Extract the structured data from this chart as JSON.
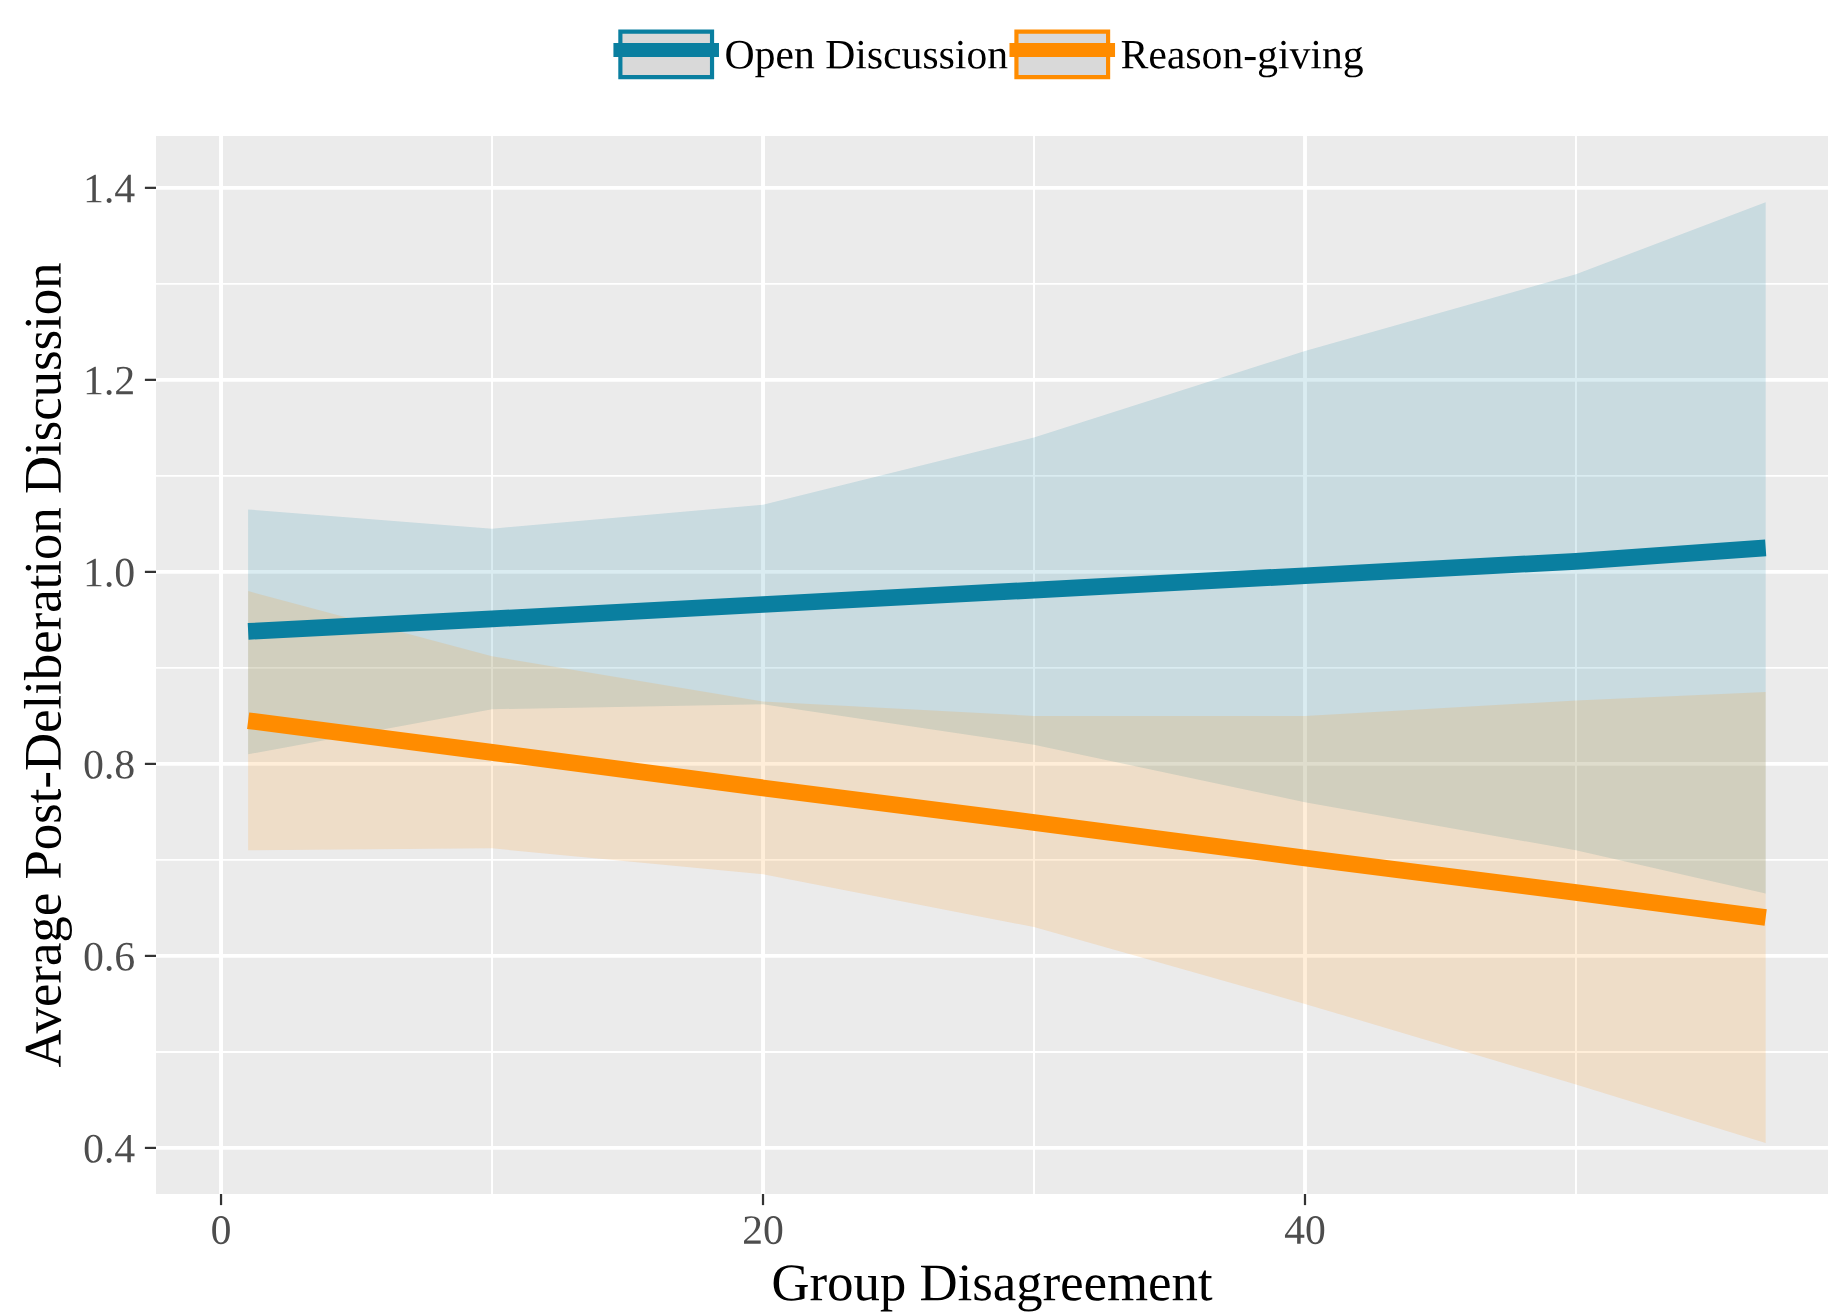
{
  "chart_data": {
    "type": "line",
    "xlabel": "Group Disagreement",
    "ylabel": "Average Post-Deliberation Discussion",
    "xlim": [
      -2.4,
      59.3
    ],
    "ylim": [
      0.352,
      1.454
    ],
    "xticks": [
      0,
      20,
      40
    ],
    "yticks": [
      0.4,
      0.6,
      0.8,
      {
        "value": 1,
        "label": "1.0"
      },
      1.2,
      1.4
    ],
    "grid": true,
    "legend": "top",
    "line_style": "solid",
    "marker": "none",
    "series": [
      {
        "name": "Open Discussion",
        "color": "#0a7fa0",
        "x": [
          1,
          10,
          20,
          30,
          40,
          50,
          57
        ],
        "values": [
          0.938,
          0.951,
          0.966,
          0.981,
          0.996,
          1.011,
          1.025
        ],
        "lower": [
          0.81,
          0.857,
          0.862,
          0.82,
          0.76,
          0.71,
          0.665
        ],
        "upper": [
          1.065,
          1.045,
          1.07,
          1.14,
          1.23,
          1.31,
          1.385
        ]
      },
      {
        "name": "Reason-giving",
        "color": "#ff8c00",
        "x": [
          1,
          10,
          20,
          30,
          40,
          50,
          57
        ],
        "values": [
          0.845,
          0.812,
          0.775,
          0.739,
          0.702,
          0.666,
          0.64
        ],
        "lower": [
          0.71,
          0.712,
          0.685,
          0.63,
          0.55,
          0.466,
          0.405
        ],
        "upper": [
          0.98,
          0.912,
          0.865,
          0.85,
          0.85,
          0.866,
          0.875
        ]
      }
    ]
  }
}
